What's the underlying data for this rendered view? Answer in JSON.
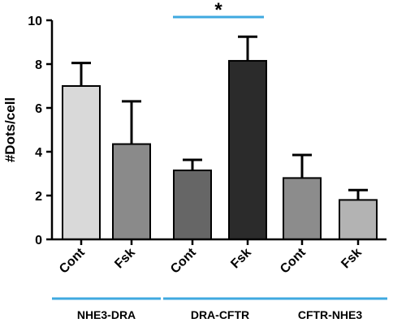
{
  "chart_data": {
    "type": "bar",
    "title": "",
    "ylabel": "#Dots/cell",
    "xlabel": "",
    "ylim": [
      0,
      10
    ],
    "yticks": [
      0,
      2,
      4,
      6,
      8,
      10
    ],
    "categories": [
      "Cont",
      "Fsk",
      "Cont",
      "Fsk",
      "Cont",
      "Fsk"
    ],
    "values": [
      7.0,
      4.35,
      3.15,
      8.15,
      2.8,
      1.8
    ],
    "errors": [
      1.05,
      1.95,
      0.48,
      1.1,
      1.05,
      0.45
    ],
    "groups": [
      {
        "label": "NHE3-DRA",
        "bars": [
          0,
          1
        ]
      },
      {
        "label": "DRA-CFTR",
        "bars": [
          2,
          3
        ]
      },
      {
        "label": "CFTR-NHE3",
        "bars": [
          4,
          5
        ]
      }
    ],
    "significance": {
      "label": "*",
      "bars": [
        2,
        3
      ]
    },
    "colors": {
      "bars": [
        "#d9d9d9",
        "#8a8a8a",
        "#666666",
        "#2b2b2b",
        "#8c8c8c",
        "#b3b3b3"
      ],
      "group_line": "#3fa9e0",
      "axis": "#000000"
    },
    "grid": false
  }
}
